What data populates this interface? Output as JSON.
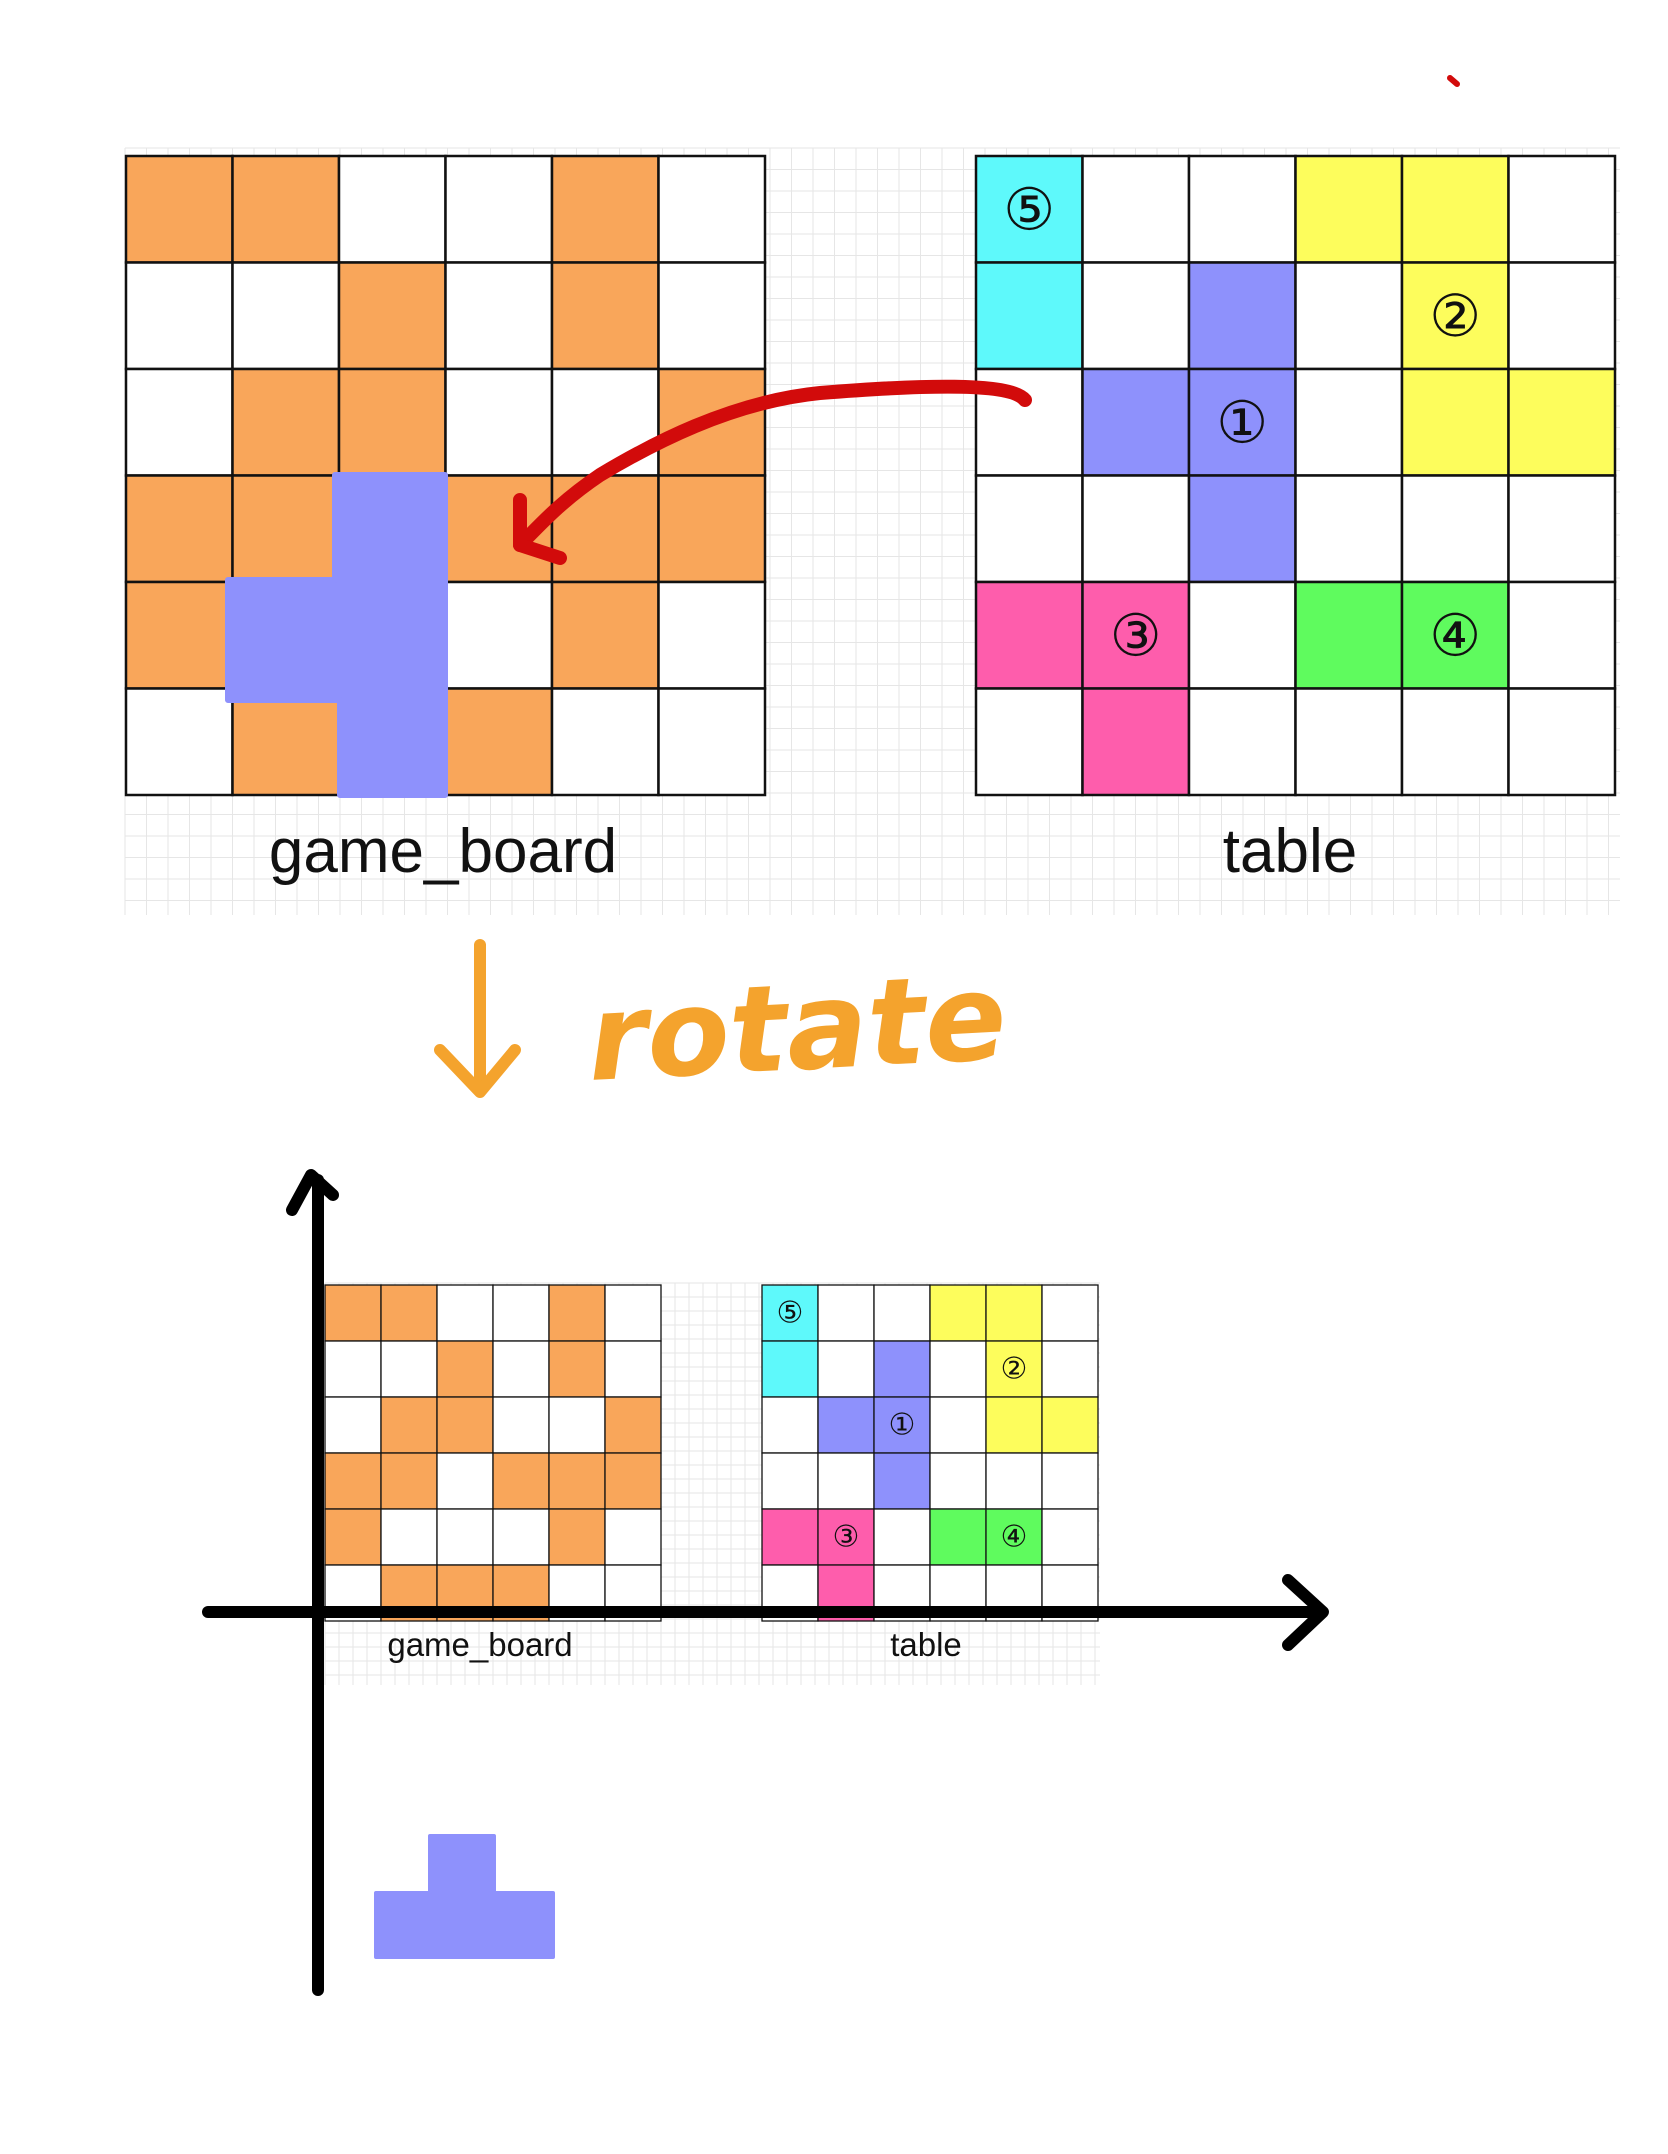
{
  "top": {
    "game_board": {
      "label": "game_board",
      "cells": [
        [
          1,
          1,
          0,
          0,
          1,
          0
        ],
        [
          0,
          0,
          1,
          0,
          1,
          0
        ],
        [
          0,
          1,
          1,
          0,
          0,
          1
        ],
        [
          1,
          1,
          0,
          1,
          1,
          1
        ],
        [
          1,
          0,
          0,
          0,
          1,
          0
        ],
        [
          0,
          1,
          0,
          1,
          0,
          0
        ]
      ]
    },
    "table": {
      "label": "table",
      "cells": [
        [
          5,
          0,
          0,
          2,
          2,
          0
        ],
        [
          5,
          0,
          1,
          0,
          2,
          0
        ],
        [
          0,
          1,
          1,
          0,
          2,
          2
        ],
        [
          0,
          0,
          1,
          0,
          0,
          0
        ],
        [
          3,
          3,
          0,
          4,
          4,
          0
        ],
        [
          0,
          3,
          0,
          0,
          0,
          0
        ]
      ],
      "badges": [
        {
          "text": "⑤",
          "row": 0,
          "col": 0
        },
        {
          "text": "②",
          "row": 1,
          "col": 4
        },
        {
          "text": "①",
          "row": 2,
          "col": 2
        },
        {
          "text": "③",
          "row": 4,
          "col": 1
        },
        {
          "text": "④",
          "row": 4,
          "col": 4
        }
      ]
    }
  },
  "annotation": {
    "rotate_text": "rotate"
  },
  "bottom": {
    "game_board": {
      "label": "game_board",
      "cells": [
        [
          1,
          1,
          0,
          0,
          1,
          0
        ],
        [
          0,
          0,
          1,
          0,
          1,
          0
        ],
        [
          0,
          1,
          1,
          0,
          0,
          1
        ],
        [
          1,
          1,
          0,
          1,
          1,
          1
        ],
        [
          1,
          0,
          0,
          0,
          1,
          0
        ],
        [
          0,
          1,
          1,
          1,
          0,
          0
        ]
      ]
    },
    "table": {
      "label": "table"
    }
  },
  "colors": {
    "board_fill": "#F9A65A",
    "piece_1": "#8E91FC",
    "piece_2": "#FDFD5C",
    "piece_3": "#FE5DAC",
    "piece_4": "#5FFB5E",
    "piece_5": "#5EF9FB",
    "arrow_red": "#D20B0B",
    "rotate_orange": "#F4A32D",
    "grid_line": "#111111",
    "bg_grid": "#E6E6E6",
    "axis": "#000000"
  }
}
